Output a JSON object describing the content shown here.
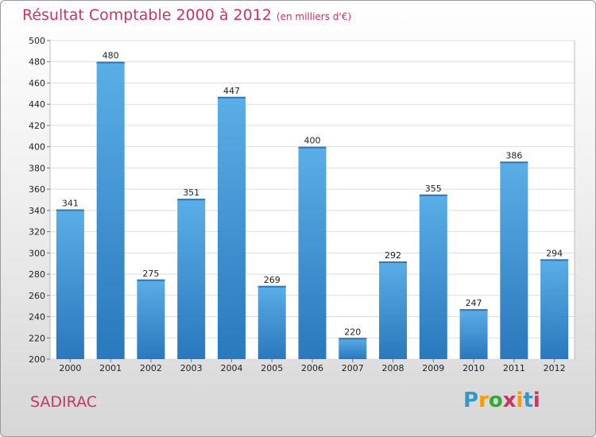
{
  "header": {
    "title": "Résultat Comptable 2000 à 2012",
    "subtitle": "(en milliers d'€)"
  },
  "commune": "SADIRAC",
  "logo": {
    "text": "Proxiti",
    "colors": [
      "#3399cc",
      "#ff9900",
      "#33aa33",
      "#cc3366",
      "#ff9900",
      "#3399cc",
      "#cc3366"
    ]
  },
  "colors": {
    "bar_light": "#5aaee6",
    "bar_dark": "#2a78bd",
    "title": "#cc3366",
    "grid": "#dddddd"
  },
  "chart_data": {
    "type": "bar",
    "title": "Résultat Comptable 2000 à 2012",
    "xlabel": "",
    "ylabel": "",
    "ylim": [
      200,
      500
    ],
    "ytick_step": 20,
    "grid": true,
    "categories": [
      "2000",
      "2001",
      "2002",
      "2003",
      "2004",
      "2005",
      "2006",
      "2007",
      "2008",
      "2009",
      "2010",
      "2011",
      "2012"
    ],
    "values": [
      341,
      480,
      275,
      351,
      447,
      269,
      400,
      220,
      292,
      355,
      247,
      386,
      294
    ]
  }
}
